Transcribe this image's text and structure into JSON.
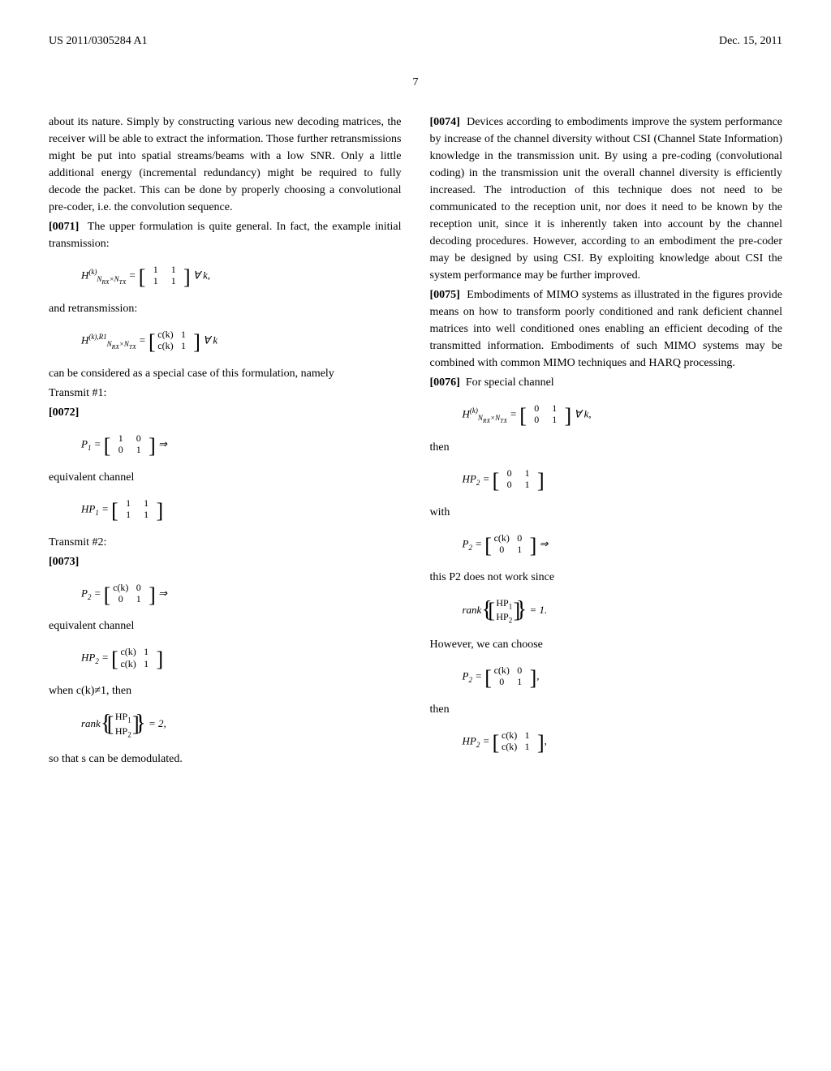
{
  "header": {
    "left": "US 2011/0305284 A1",
    "right": "Dec. 15, 2011"
  },
  "page_number": "7",
  "left_column": {
    "intro": "about its nature. Simply by constructing various new decoding matrices, the receiver will be able to extract the information. Those further retransmissions might be put into spatial streams/beams with a low SNR. Only a little additional energy (incremental redundancy) might be required to fully decode the packet. This can be done by properly choosing a convolutional pre-coder, i.e. the convolution sequence.",
    "p0071": "The upper formulation is quite general. In fact, the example initial transmission:",
    "and_retrans": "and retransmission:",
    "special_case": "can be considered as a special case of this formulation, namely",
    "transmit1": "Transmit #1:",
    "p0072": "[0072]",
    "eq_channel": "equivalent channel",
    "transmit2": "Transmit #2:",
    "p0073": "[0073]",
    "when_ck": "when c(k)≠1, then",
    "so_that": "so that s can be demodulated."
  },
  "right_column": {
    "p0074": "Devices according to embodiments improve the system performance by increase of the channel diversity without CSI (Channel State Information) knowledge in the transmission unit. By using a pre-coding (convolutional coding) in the transmission unit the overall channel diversity is efficiently increased. The introduction of this technique does not need to be communicated to the reception unit, nor does it need to be known by the reception unit, since it is inherently taken into account by the channel decoding procedures. However, according to an embodiment the pre-coder may be designed by using CSI. By exploiting knowledge about CSI the system performance may be further improved.",
    "p0075": "Embodiments of MIMO systems as illustrated in the figures provide means on how to transform poorly conditioned and rank deficient channel matrices into well conditioned ones enabling an efficient decoding of the transmitted information. Embodiments of such MIMO systems may be combined with common MIMO techniques and HARQ processing.",
    "p0076": "For special channel",
    "then": "then",
    "with": "with",
    "not_work": "this P2 does not work since",
    "however": "However, we can choose"
  }
}
